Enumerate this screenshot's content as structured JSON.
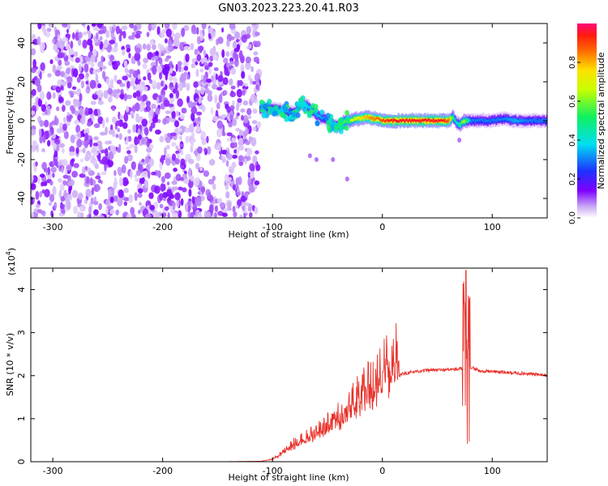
{
  "figure": {
    "title": "GN03.2023.223.20.41.R03"
  },
  "chart_data": [
    {
      "type": "heatmap",
      "title": "GN03.2023.223.20.41.R03",
      "xlabel": "Height of straight line (km)",
      "ylabel": "Frequency (Hz)",
      "xlim": [
        -320,
        150
      ],
      "ylim": [
        -50,
        50
      ],
      "x_ticks": [
        -300,
        -200,
        -100,
        0,
        100
      ],
      "x_tick_labels": [
        "-300",
        "-200",
        "-100",
        "0",
        "100"
      ],
      "y_ticks": [
        -40,
        -20,
        0,
        20,
        40
      ],
      "y_tick_labels": [
        "-40",
        "-20",
        "0",
        "20",
        "40"
      ],
      "grid": false,
      "noise_region_x": [
        -320,
        -112
      ],
      "ridge": {
        "x": [
          -112,
          -100,
          -90,
          -80,
          -74,
          -70,
          -64,
          -58,
          -52,
          -46,
          -42,
          -38,
          -34,
          -30,
          -25,
          -20,
          -15,
          -10,
          -5,
          0,
          10,
          20,
          30,
          40,
          50,
          60,
          64,
          67,
          70,
          74,
          80,
          90,
          100,
          110,
          120,
          130,
          140,
          150
        ],
        "y": [
          6,
          6,
          5,
          4,
          9,
          8,
          5,
          2,
          1,
          -2,
          -3,
          -2,
          0,
          0,
          1,
          1,
          2,
          1,
          1,
          0,
          0,
          0,
          0,
          0,
          0,
          0,
          2,
          -1,
          -2,
          0,
          0,
          0,
          0,
          1,
          0,
          0,
          0,
          0
        ],
        "amplitude": [
          0.25,
          0.3,
          0.35,
          0.3,
          0.45,
          0.4,
          0.35,
          0.35,
          0.3,
          0.35,
          0.4,
          0.5,
          0.6,
          0.65,
          0.7,
          0.75,
          0.8,
          0.85,
          0.85,
          0.9,
          0.95,
          0.95,
          0.95,
          0.95,
          0.95,
          0.9,
          0.5,
          0.4,
          0.5,
          0.65,
          0.3,
          0.3,
          0.3,
          0.3,
          0.35,
          0.3,
          0.3,
          0.3
        ]
      },
      "colorbar": {
        "label": "Normalized spectral amplitude",
        "range": [
          0,
          1
        ],
        "ticks": [
          0.0,
          0.2,
          0.4,
          0.6,
          0.8
        ],
        "tick_labels": [
          "0.0",
          "0.2",
          "0.4",
          "0.6",
          "0.8"
        ],
        "colormap": "rainbow (white-violet-blue-cyan-green-yellow-orange-red-pink)"
      }
    },
    {
      "type": "line",
      "xlabel": "Height of straight line (km)",
      "ylabel": "SNR (10 * v/v)",
      "exponent_label": "(x10",
      "exponent_sup": "4",
      "exponent_close": ")",
      "xlim": [
        -320,
        150
      ],
      "ylim": [
        0,
        4.5
      ],
      "x_ticks": [
        -300,
        -200,
        -100,
        0,
        100
      ],
      "x_tick_labels": [
        "-300",
        "-200",
        "-100",
        "0",
        "100"
      ],
      "y_ticks": [
        0,
        1,
        2,
        3,
        4
      ],
      "y_tick_labels": [
        "0",
        "1",
        "2",
        "3",
        "4"
      ],
      "grid": false,
      "line_color": "#e8312a",
      "series": [
        {
          "x": [
            -320,
            -250,
            -200,
            -150,
            -110,
            -100,
            -90,
            -80,
            -70,
            -60,
            -50,
            -40,
            -30,
            -20,
            -10,
            0,
            10,
            20,
            30,
            40,
            50,
            60,
            70,
            75,
            76,
            78,
            80,
            85,
            90,
            100,
            110,
            120,
            130,
            140,
            150
          ],
          "values": [
            0,
            0,
            0,
            0,
            0.01,
            0.05,
            0.2,
            0.35,
            0.45,
            0.55,
            0.7,
            0.85,
            1.05,
            1.3,
            1.5,
            1.75,
            1.95,
            2.05,
            2.1,
            2.12,
            2.13,
            2.14,
            2.15,
            2.2,
            4.45,
            2.2,
            2.2,
            2.15,
            2.1,
            2.1,
            2.08,
            2.06,
            2.05,
            2.03,
            2.0
          ]
        }
      ]
    }
  ]
}
